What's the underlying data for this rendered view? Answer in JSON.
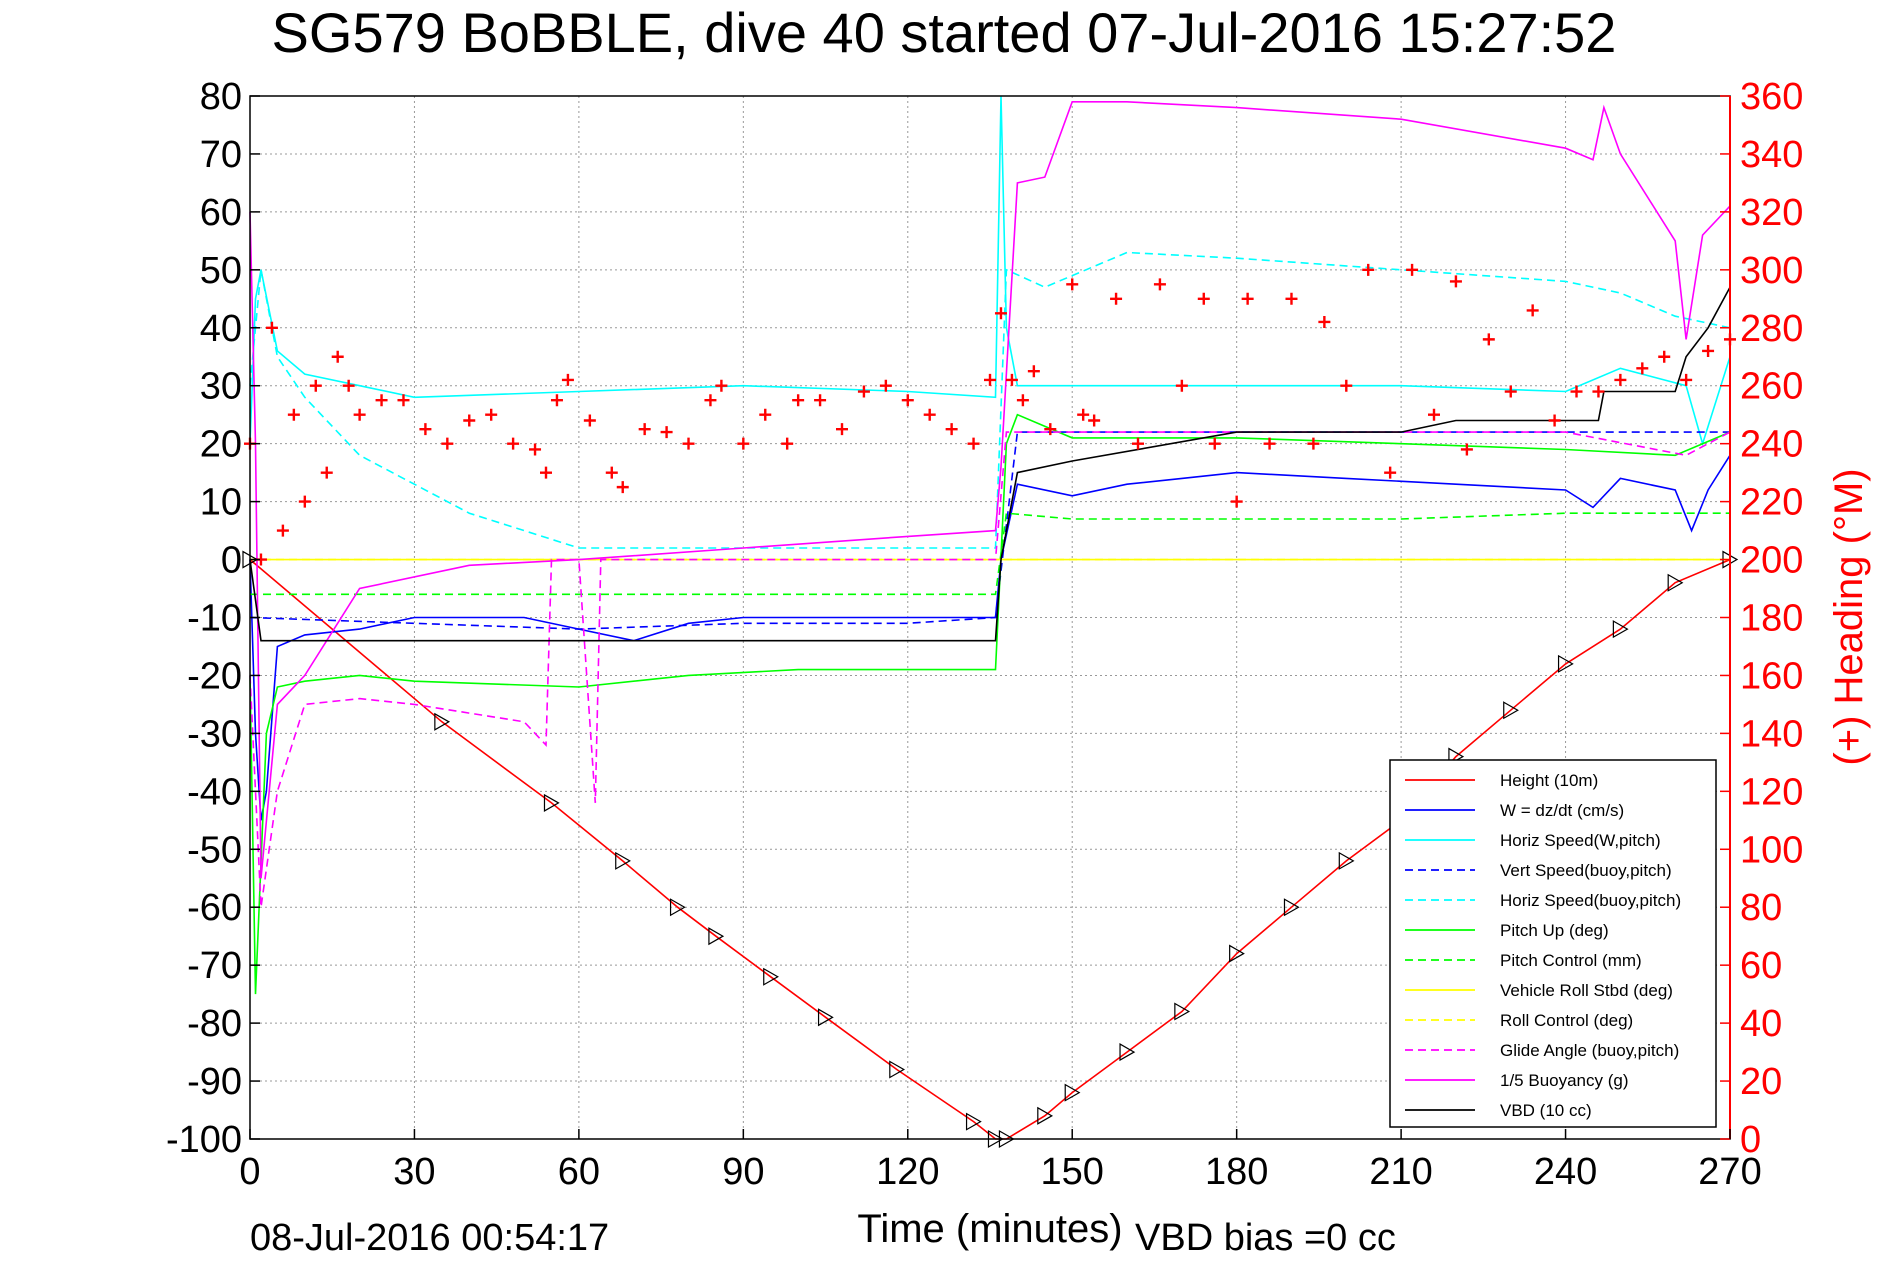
{
  "chart_data": {
    "type": "line",
    "title": "SG579 BoBBLE, dive 40 started 07-Jul-2016 15:27:52",
    "xlabel": "Time (minutes)",
    "ylabel_right": "(+) Heading (°M)",
    "footer_left": "08-Jul-2016 00:54:17",
    "footer_right": "VBD bias =0 cc",
    "xlim": [
      0,
      270
    ],
    "ylim": [
      -100,
      80
    ],
    "y2lim": [
      0,
      360
    ],
    "x_ticks": [
      0,
      30,
      60,
      90,
      120,
      150,
      180,
      210,
      240,
      270
    ],
    "y_ticks": [
      80,
      70,
      60,
      50,
      40,
      30,
      20,
      10,
      0,
      -10,
      -20,
      -30,
      -40,
      -50,
      -60,
      -70,
      -80,
      -90,
      -100
    ],
    "y2_ticks": [
      360,
      340,
      320,
      300,
      280,
      260,
      240,
      220,
      200,
      180,
      160,
      140,
      120,
      100,
      80,
      60,
      40,
      20,
      0
    ],
    "grid": true,
    "legend_position": "bottom-right",
    "colors": {
      "height": "#ff0000",
      "w": "#0000ff",
      "horiz_speed_w": "#00ffff",
      "vert_speed_buoy": "#0000ff",
      "horiz_speed_buoy": "#00ffff",
      "pitch_up": "#00ff00",
      "pitch_control": "#00ff00",
      "roll_stbd": "#ffff00",
      "roll_control": "#ffff00",
      "glide_angle": "#ff00ff",
      "buoyancy": "#ff00ff",
      "vbd": "#000000",
      "heading": "#ff0000",
      "right_axis": "#ff0000"
    },
    "series": [
      {
        "name": "Height (10m)",
        "style": "solid",
        "color": "#ff0000",
        "x": [
          0,
          35,
          55,
          68,
          78,
          85,
          95,
          105,
          118,
          132,
          136,
          138,
          145,
          150,
          160,
          170,
          180,
          190,
          200,
          210,
          220,
          230,
          240,
          250,
          260,
          270
        ],
        "y": [
          0,
          -28,
          -42,
          -52,
          -60,
          -65,
          -72,
          -79,
          -88,
          -97,
          -100,
          -100,
          -96,
          -92,
          -85,
          -78,
          -68,
          -60,
          -52,
          -45,
          -34,
          -26,
          -18,
          -12,
          -4,
          0
        ]
      },
      {
        "name": "W = dz/dt (cm/s)",
        "style": "solid",
        "color": "#0000ff",
        "x": [
          0,
          1,
          2,
          3,
          5,
          10,
          20,
          30,
          50,
          60,
          70,
          80,
          90,
          100,
          110,
          120,
          136,
          137,
          140,
          150,
          160,
          170,
          180,
          200,
          220,
          240,
          245,
          250,
          260,
          263,
          266,
          270
        ],
        "y": [
          0,
          -30,
          -45,
          -40,
          -15,
          -13,
          -12,
          -10,
          -10,
          -12,
          -14,
          -11,
          -10,
          -10,
          -10,
          -10,
          -10,
          0,
          13,
          11,
          13,
          14,
          15,
          14,
          13,
          12,
          9,
          14,
          12,
          5,
          12,
          18
        ]
      },
      {
        "name": "Horiz Speed(W,pitch)",
        "style": "solid",
        "color": "#00ffff",
        "x": [
          0,
          1,
          2,
          5,
          10,
          20,
          30,
          60,
          90,
          120,
          136,
          137,
          138,
          140,
          150,
          180,
          210,
          240,
          250,
          262,
          265,
          270
        ],
        "y": [
          20,
          45,
          50,
          36,
          32,
          30,
          28,
          29,
          30,
          29,
          28,
          80,
          40,
          30,
          30,
          30,
          30,
          29,
          33,
          30,
          20,
          35
        ]
      },
      {
        "name": "Vert Speed(buoy,pitch)",
        "style": "dashed",
        "color": "#0000ff",
        "x": [
          0,
          30,
          60,
          90,
          120,
          136,
          140,
          180,
          220,
          260,
          270
        ],
        "y": [
          -10,
          -11,
          -12,
          -11,
          -11,
          -10,
          22,
          22,
          22,
          22,
          22
        ]
      },
      {
        "name": "Horiz Speed(buoy,pitch)",
        "style": "dashed",
        "color": "#00ffff",
        "x": [
          0,
          2,
          5,
          10,
          20,
          40,
          60,
          136,
          138,
          145,
          160,
          180,
          210,
          240,
          250,
          260,
          270
        ],
        "y": [
          30,
          50,
          35,
          28,
          18,
          8,
          2,
          2,
          50,
          47,
          53,
          52,
          50,
          48,
          46,
          42,
          40
        ]
      },
      {
        "name": "Pitch Up (deg)",
        "style": "solid",
        "color": "#00ff00",
        "x": [
          0,
          1,
          3,
          5,
          10,
          20,
          30,
          60,
          80,
          100,
          120,
          136,
          138,
          140,
          150,
          180,
          210,
          240,
          260,
          270
        ],
        "y": [
          -20,
          -75,
          -30,
          -22,
          -21,
          -20,
          -21,
          -22,
          -20,
          -19,
          -19,
          -19,
          20,
          25,
          21,
          21,
          20,
          19,
          18,
          22
        ]
      },
      {
        "name": "Pitch Control (mm)",
        "style": "dashed",
        "color": "#00ff00",
        "x": [
          0,
          30,
          60,
          90,
          120,
          136,
          138,
          150,
          180,
          210,
          240,
          270
        ],
        "y": [
          -6,
          -6,
          -6,
          -6,
          -6,
          -6,
          8,
          7,
          7,
          7,
          8,
          8
        ]
      },
      {
        "name": "Vehicle Roll Stbd (deg)",
        "style": "solid",
        "color": "#ffff00",
        "x": [
          0,
          10,
          20,
          30,
          60,
          90,
          120,
          136,
          150,
          180,
          210,
          240,
          270
        ],
        "y": [
          0,
          0,
          0,
          0,
          0,
          0,
          0,
          0,
          0,
          0,
          0,
          0,
          0
        ]
      },
      {
        "name": "Roll Control (deg)",
        "style": "dashed",
        "color": "#ffff00",
        "x": [
          0,
          30,
          60,
          90,
          120,
          150,
          180,
          210,
          240,
          270
        ],
        "y": [
          0,
          0,
          0,
          0,
          0,
          0,
          0,
          0,
          0,
          0
        ]
      },
      {
        "name": "Glide Angle (buoy,pitch)",
        "style": "dashed",
        "color": "#ff00ff",
        "x": [
          0,
          2,
          5,
          10,
          20,
          30,
          50,
          54,
          55,
          60,
          63,
          64,
          136,
          138,
          150,
          180,
          210,
          240,
          262,
          270
        ],
        "y": [
          -20,
          -60,
          -40,
          -25,
          -24,
          -25,
          -28,
          -32,
          0,
          0,
          -42,
          0,
          0,
          22,
          22,
          22,
          22,
          22,
          18,
          22
        ]
      },
      {
        "name": "1/5 Buoyancy (g)",
        "style": "solid",
        "color": "#ff00ff",
        "x": [
          0,
          1,
          2,
          5,
          10,
          20,
          40,
          60,
          90,
          120,
          136,
          137,
          140,
          145,
          150,
          160,
          180,
          210,
          240,
          245,
          247,
          250,
          260,
          262,
          265,
          270
        ],
        "y": [
          60,
          20,
          -55,
          -25,
          -20,
          -5,
          -1,
          0,
          2,
          4,
          5,
          16,
          65,
          66,
          79,
          79,
          78,
          76,
          71,
          69,
          78,
          70,
          55,
          38,
          56,
          61
        ]
      },
      {
        "name": "VBD (10 cc)",
        "style": "solid",
        "color": "#000000",
        "x": [
          0,
          2,
          3,
          10,
          60,
          136,
          137,
          140,
          150,
          180,
          210,
          220,
          246,
          247,
          260,
          262,
          266,
          270
        ],
        "y": [
          0,
          -14,
          -14,
          -14,
          -14,
          -14,
          0,
          15,
          17,
          22,
          22,
          24,
          24,
          29,
          29,
          35,
          40,
          47
        ]
      }
    ],
    "heading_series": {
      "name": "(+) Heading",
      "marker": "+",
      "color": "#ff0000",
      "axis": "right",
      "x": [
        0,
        2,
        4,
        6,
        8,
        10,
        12,
        14,
        16,
        18,
        20,
        24,
        28,
        32,
        36,
        40,
        44,
        48,
        52,
        54,
        56,
        58,
        62,
        66,
        68,
        72,
        76,
        80,
        84,
        86,
        90,
        94,
        98,
        100,
        104,
        108,
        112,
        116,
        120,
        124,
        128,
        132,
        135,
        137,
        139,
        141,
        143,
        146,
        150,
        152,
        154,
        158,
        162,
        166,
        170,
        174,
        176,
        180,
        182,
        186,
        190,
        194,
        196,
        200,
        204,
        208,
        212,
        216,
        220,
        222,
        226,
        230,
        234,
        238,
        242,
        246,
        250,
        254,
        258,
        262,
        266,
        270
      ],
      "y": [
        240,
        200,
        280,
        210,
        250,
        220,
        260,
        230,
        270,
        260,
        250,
        255,
        255,
        245,
        240,
        248,
        250,
        240,
        238,
        230,
        255,
        262,
        248,
        230,
        225,
        245,
        244,
        240,
        255,
        260,
        240,
        250,
        240,
        255,
        255,
        245,
        258,
        260,
        255,
        250,
        245,
        240,
        262,
        285,
        262,
        255,
        265,
        245,
        295,
        250,
        248,
        290,
        240,
        295,
        260,
        290,
        240,
        220,
        290,
        240,
        290,
        240,
        282,
        260,
        300,
        230,
        300,
        250,
        296,
        238,
        276,
        258,
        286,
        248,
        258,
        258,
        262,
        266,
        270,
        262,
        272,
        276
      ]
    }
  },
  "legend": {
    "entries": [
      {
        "label": "Height (10m)",
        "color": "#ff0000",
        "style": "solid"
      },
      {
        "label": "W = dz/dt (cm/s)",
        "color": "#0000ff",
        "style": "solid"
      },
      {
        "label": "Horiz Speed(W,pitch)",
        "color": "#00ffff",
        "style": "solid"
      },
      {
        "label": "Vert Speed(buoy,pitch)",
        "color": "#0000ff",
        "style": "dashed"
      },
      {
        "label": "Horiz Speed(buoy,pitch)",
        "color": "#00ffff",
        "style": "dashed"
      },
      {
        "label": "Pitch Up (deg)",
        "color": "#00ff00",
        "style": "solid"
      },
      {
        "label": "Pitch Control (mm)",
        "color": "#00ff00",
        "style": "dashed"
      },
      {
        "label": "Vehicle Roll Stbd (deg)",
        "color": "#ffff00",
        "style": "solid"
      },
      {
        "label": "Roll Control (deg)",
        "color": "#ffff00",
        "style": "dashed"
      },
      {
        "label": "Glide Angle (buoy,pitch)",
        "color": "#ff00ff",
        "style": "dashed"
      },
      {
        "label": "1/5 Buoyancy (g)",
        "color": "#ff00ff",
        "style": "solid"
      },
      {
        "label": "VBD (10 cc)",
        "color": "#000000",
        "style": "solid"
      }
    ]
  }
}
